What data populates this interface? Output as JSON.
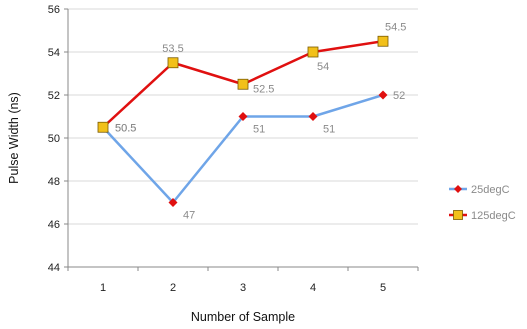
{
  "chart_data": {
    "type": "line",
    "title": "",
    "xlabel": "Number of Sample",
    "ylabel": "Pulse Width (ns)",
    "categories": [
      "1",
      "2",
      "3",
      "4",
      "5"
    ],
    "ylim": [
      44,
      56
    ],
    "yticks": [
      "44",
      "46",
      "48",
      "50",
      "52",
      "54",
      "56"
    ],
    "grid": "horizontal",
    "legend_position": "right",
    "series": [
      {
        "name": "25degC",
        "values": [
          50.5,
          47,
          51,
          51,
          52
        ],
        "labels": [
          "50.5",
          "47",
          "51",
          "51",
          "52"
        ],
        "line_color": "#6fa5e8",
        "marker": "diamond",
        "marker_color": "#e01010"
      },
      {
        "name": "125degC",
        "values": [
          50.5,
          53.5,
          52.5,
          54,
          54.5
        ],
        "labels": [
          "50.5",
          "53.5",
          "52.5",
          "54",
          "54.5"
        ],
        "line_color": "#e01010",
        "marker": "square",
        "marker_color": "#f2c01a"
      }
    ]
  }
}
